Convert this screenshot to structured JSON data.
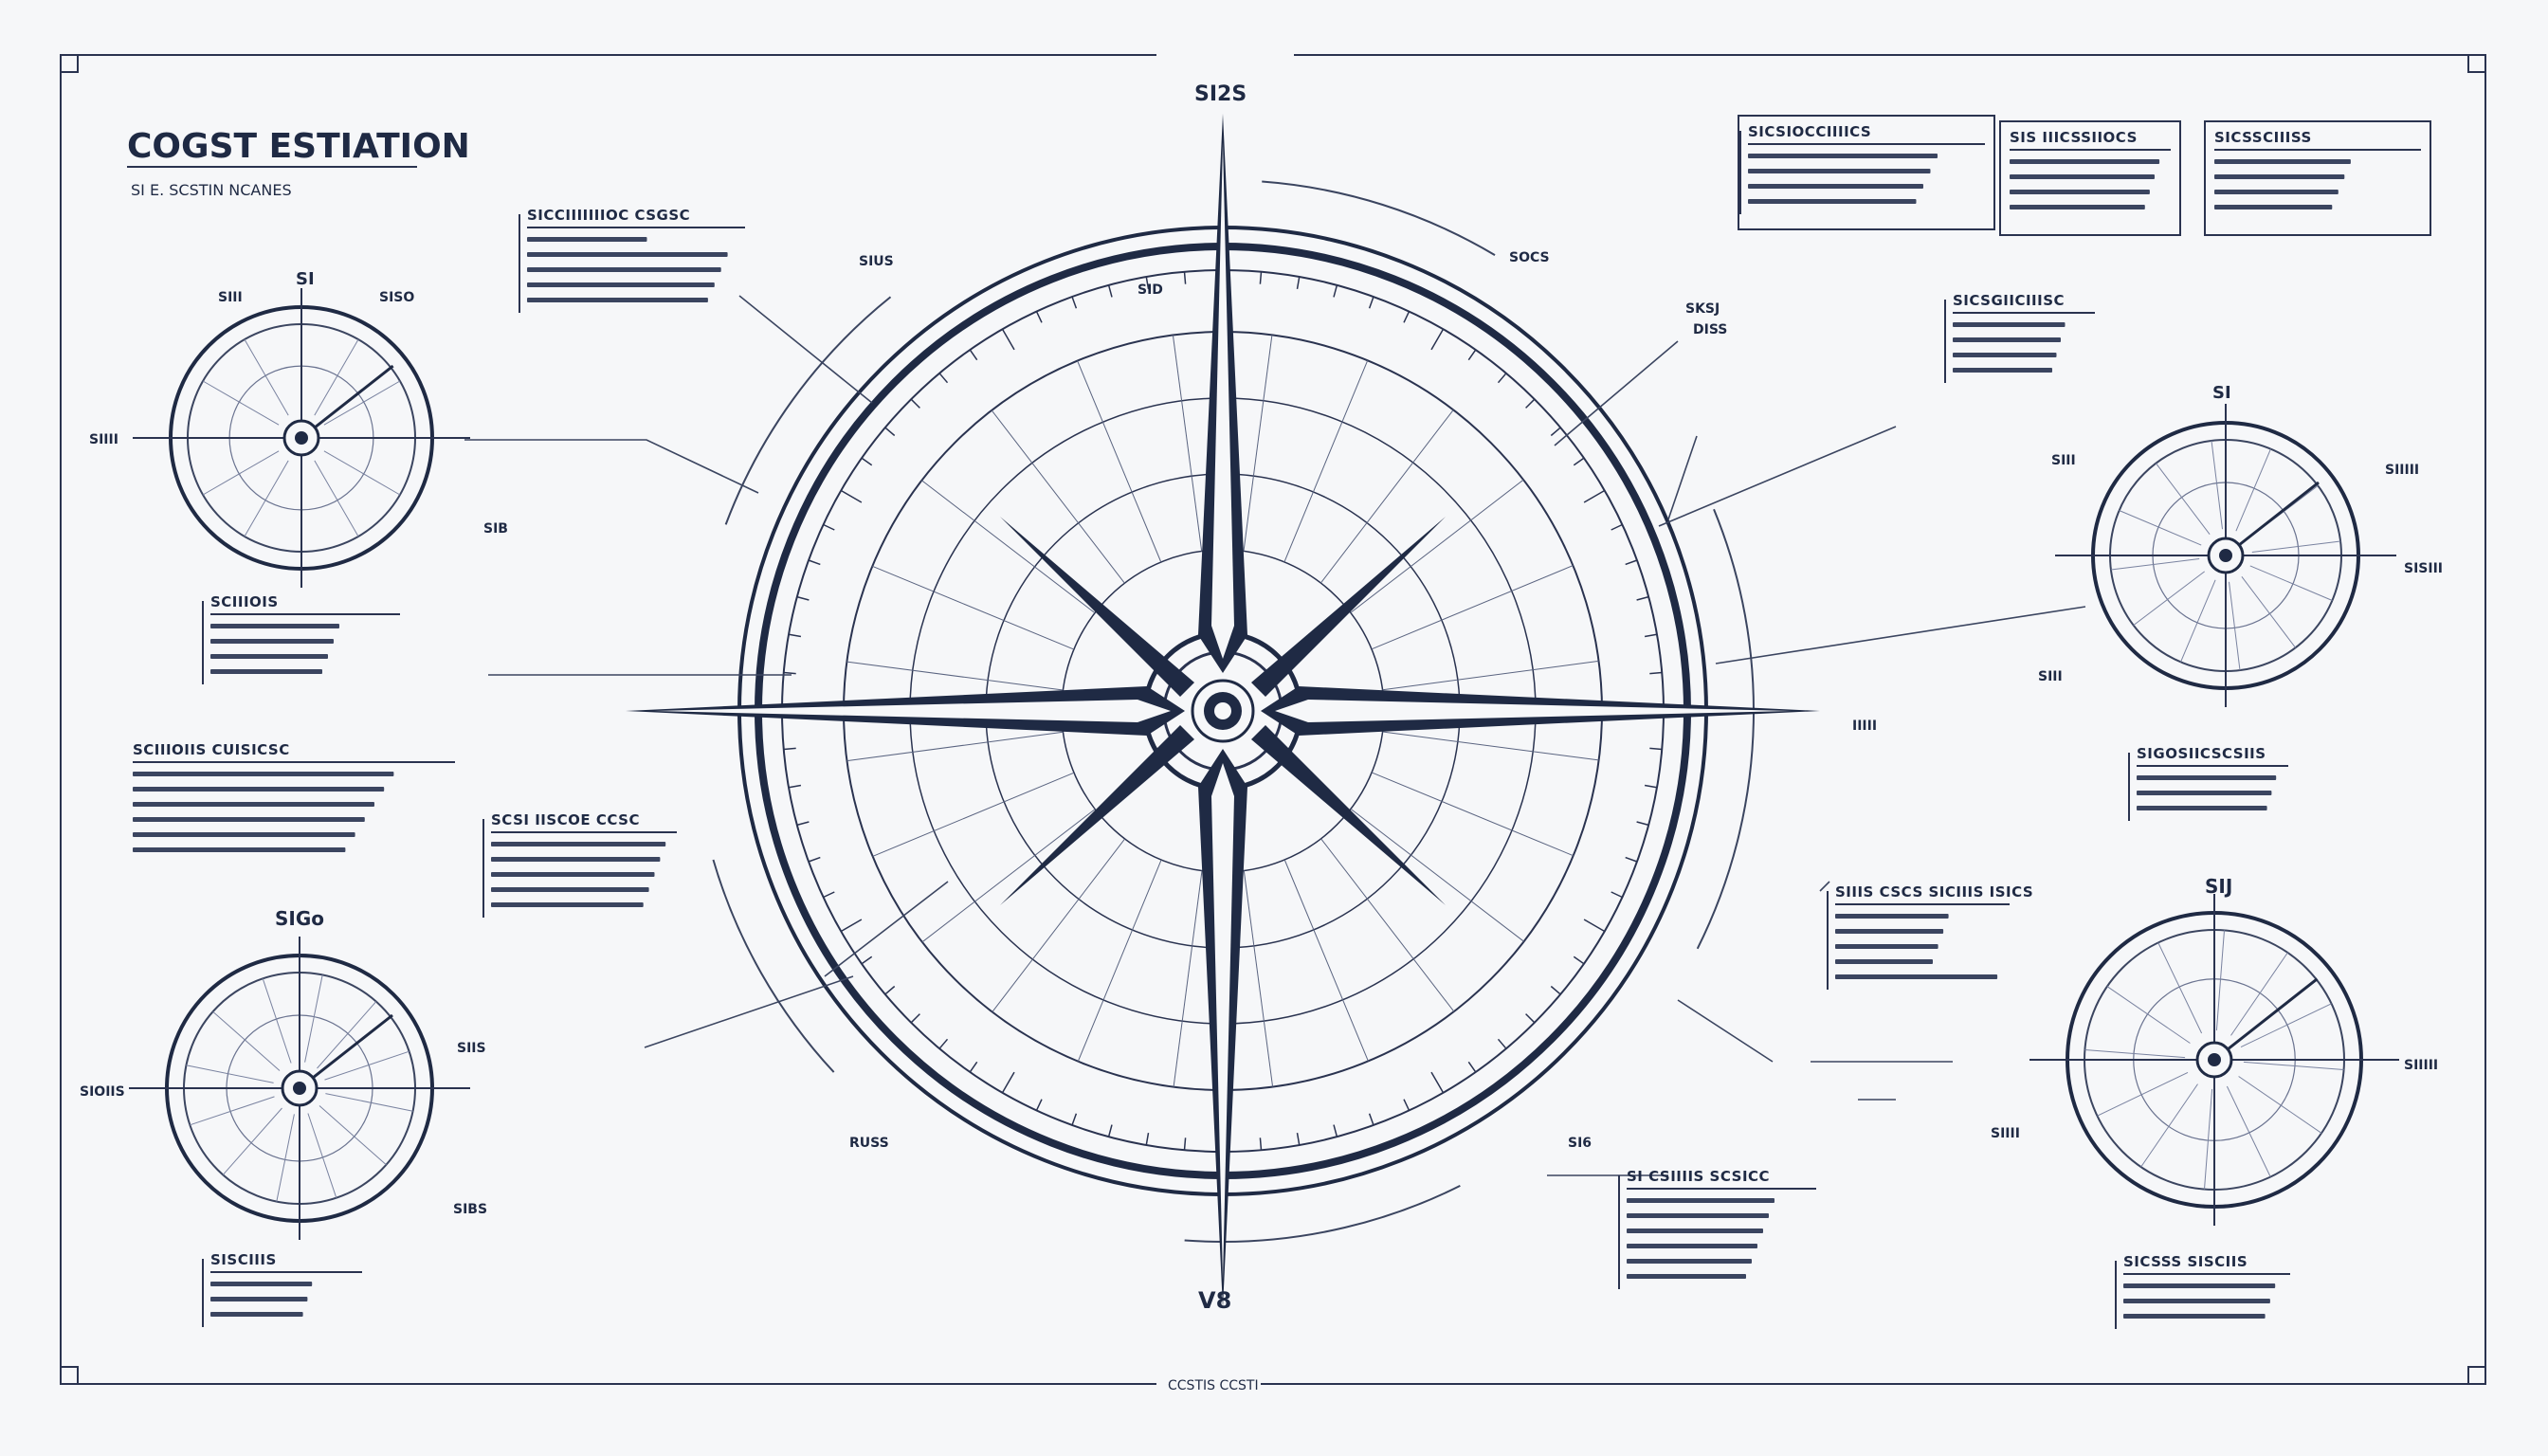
{
  "header": {
    "title": "COGST ESTIATION",
    "subtitle": "SI E. SCSTIN NCANES"
  },
  "footer": {
    "label": "CCSTIS CCSTI"
  },
  "compass": {
    "top_label": "SI2S",
    "bottom_label": "V8",
    "labels": [
      "SIUS",
      "SOCS",
      "SID",
      "SKSJ",
      "DISS",
      "IIIII",
      "RUSS",
      "SI6"
    ]
  },
  "dials": [
    {
      "id": "dial-upper-left",
      "title_label": "SI",
      "labels": [
        "SIII",
        "SISO",
        "SIIII",
        "SIB"
      ]
    },
    {
      "id": "dial-lower-left",
      "title_label": "SIGo",
      "labels": [
        "SIOIIS",
        "SIIS",
        "SIBS"
      ]
    },
    {
      "id": "dial-right-upper",
      "title_label": "SI",
      "labels": [
        "SIII",
        "SIIIII",
        "SISIII",
        "SIII"
      ]
    },
    {
      "id": "dial-right-lower",
      "title_label": "SIJ",
      "labels": [
        "SIIII",
        "SIIIII"
      ]
    }
  ],
  "annotation_blocks": [
    {
      "id": "block-top-center-left",
      "title": "SICCIIIIIIIOC CSGSC"
    },
    {
      "id": "block-left-mid",
      "title": "SCIIIOIS"
    },
    {
      "id": "block-left-lower",
      "title": "SCIIIOIIS CUISICSC"
    },
    {
      "id": "block-center-left",
      "title": "SCSI IISCOE CCSC"
    },
    {
      "id": "block-bottom-left",
      "title": "SISCIIIS"
    },
    {
      "id": "block-top-right-1",
      "title": "SICSIOCCIIIICS"
    },
    {
      "id": "block-top-right-2",
      "title": "SIS IIICSSIIOCS"
    },
    {
      "id": "block-top-right-3",
      "title": "SICSSCIIISS"
    },
    {
      "id": "block-right-mid",
      "title": "SICSGIICIIISC"
    },
    {
      "id": "block-right-lower-1",
      "title": "SIGOSIICSCSIIS"
    },
    {
      "id": "block-right-lower-2",
      "title": "SIIIS CSCS SICIIIS ISICS"
    },
    {
      "id": "block-bottom-center-right",
      "title": "SI CSIIIIS SCSICC"
    },
    {
      "id": "block-bottom-right",
      "title": "SICSSS SISCIIS"
    }
  ],
  "colors": {
    "ink": "#1f2a44",
    "line": "#2a3350",
    "paper": "#f6f7f9"
  }
}
